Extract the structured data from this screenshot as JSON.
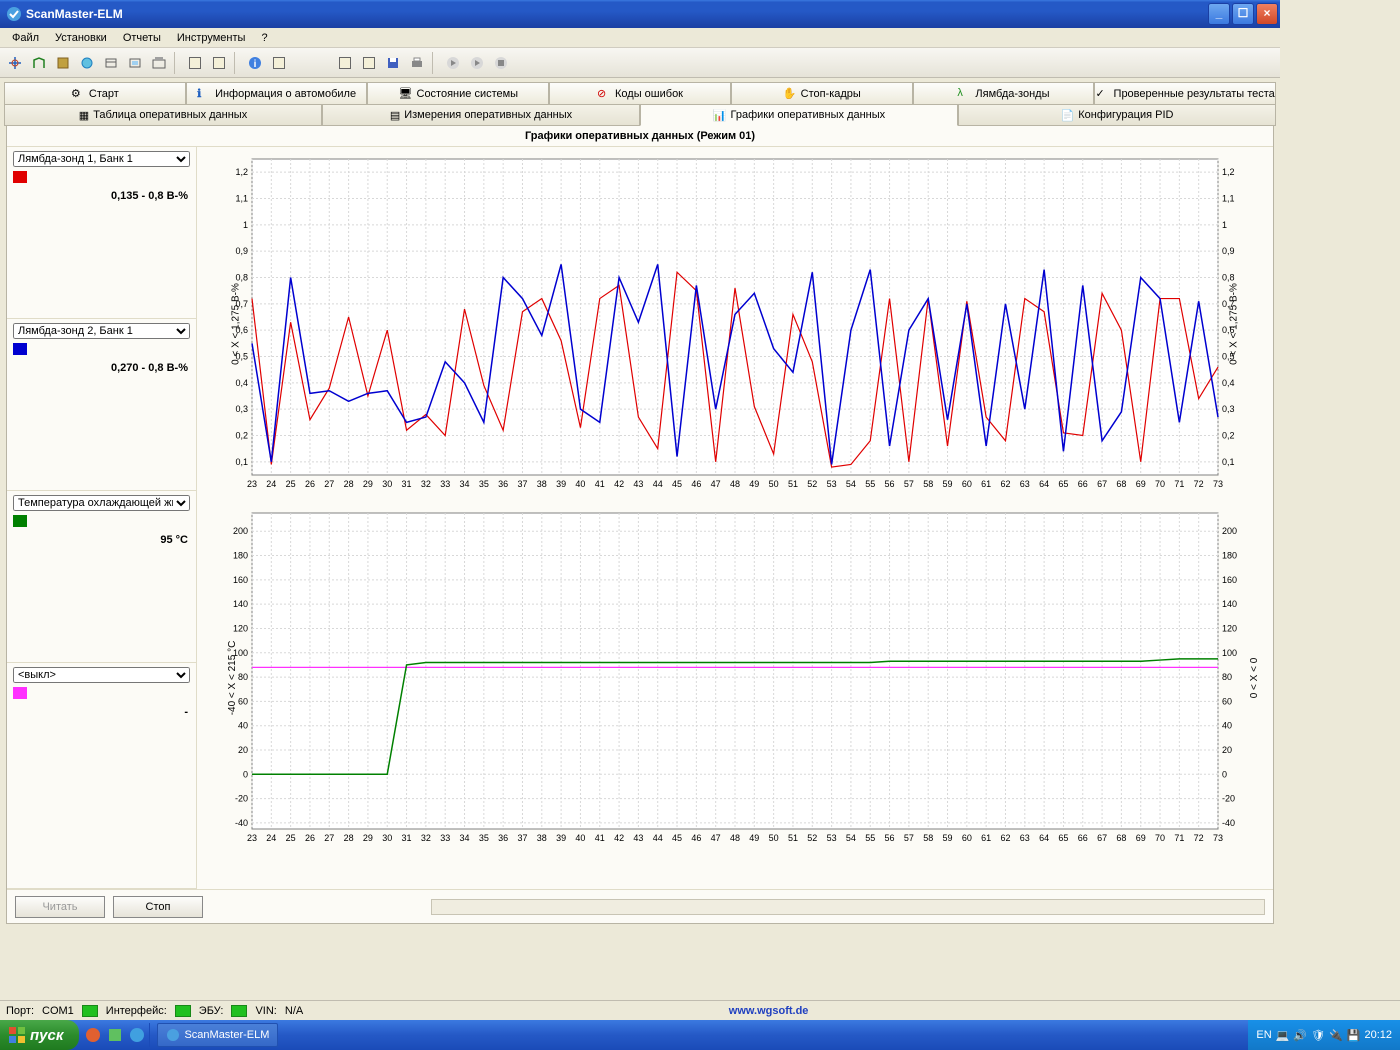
{
  "window": {
    "title": "ScanMaster-ELM"
  },
  "menu": {
    "file": "Файл",
    "settings": "Установки",
    "reports": "Отчеты",
    "tools": "Инструменты",
    "help": "?"
  },
  "tabs_top": {
    "start": "Старт",
    "vehicle": "Информация о автомобиле",
    "sysstate": "Состояние системы",
    "codes": "Коды ошибок",
    "freeze": "Стоп-кадры",
    "lambda": "Лямбда-зонды",
    "tested": "Проверенные результаты теста"
  },
  "tabs_mid": {
    "table": "Таблица оперативных данных",
    "measure": "Измерения оперативных данных",
    "graphs": "Графики оперативных данных",
    "pid": "Конфигурация PID"
  },
  "panel_title": "Графики оперативных данных (Режим 01)",
  "sensors": {
    "s1": {
      "label": "Лямбда-зонд 1, Банк 1",
      "color": "#e00000",
      "value": "0,135 - 0,8 В-%"
    },
    "s2": {
      "label": "Лямбда-зонд 2, Банк 1",
      "color": "#0000d0",
      "value": "0,270 - 0,8 В-%"
    },
    "s3": {
      "label": "Температура охлаждающей жи",
      "color": "#008000",
      "value": "95 °C"
    },
    "s4": {
      "label": "<выкл>",
      "color": "#ff30ff",
      "value": "-"
    }
  },
  "chart1": {
    "type": "line",
    "x_ticks": [
      23,
      24,
      25,
      26,
      27,
      28,
      29,
      30,
      31,
      32,
      33,
      34,
      35,
      36,
      37,
      38,
      39,
      40,
      41,
      42,
      43,
      44,
      45,
      46,
      47,
      48,
      49,
      50,
      51,
      52,
      53,
      54,
      55,
      56,
      57,
      58,
      59,
      60,
      61,
      62,
      63,
      64,
      65,
      66,
      67,
      68,
      69,
      70,
      71,
      72,
      73
    ],
    "y_ticks": [
      0.1,
      0.2,
      0.3,
      0.4,
      0.5,
      0.6,
      0.7,
      0.8,
      0.9,
      1,
      1.1,
      1.2
    ],
    "y_tick_labels": [
      "0,1",
      "0,2",
      "0,3",
      "0,4",
      "0,5",
      "0,6",
      "0,7",
      "0,8",
      "0,9",
      "1",
      "1,1",
      "1,2"
    ],
    "ylim": [
      0.05,
      1.25
    ],
    "ylabel_left": "0 < X < 1,275 В-%",
    "ylabel_right": "0 < X < 1,275 В-%",
    "background_color": "#ffffff",
    "grid_color": "#d8d8d8",
    "plot_bg": "#fcfbf6",
    "series_red": {
      "color": "#e00000",
      "width": 1.2,
      "y": [
        0.72,
        0.09,
        0.63,
        0.26,
        0.38,
        0.65,
        0.35,
        0.6,
        0.22,
        0.28,
        0.2,
        0.68,
        0.39,
        0.22,
        0.67,
        0.72,
        0.56,
        0.23,
        0.72,
        0.77,
        0.27,
        0.15,
        0.82,
        0.75,
        0.1,
        0.76,
        0.31,
        0.13,
        0.66,
        0.48,
        0.08,
        0.09,
        0.18,
        0.72,
        0.1,
        0.72,
        0.16,
        0.71,
        0.27,
        0.18,
        0.72,
        0.67,
        0.21,
        0.2,
        0.74,
        0.6,
        0.1,
        0.72,
        0.72,
        0.34,
        0.46
      ]
    },
    "series_blue": {
      "color": "#0000d0",
      "width": 1.5,
      "y": [
        0.55,
        0.1,
        0.8,
        0.36,
        0.37,
        0.33,
        0.36,
        0.37,
        0.25,
        0.27,
        0.48,
        0.4,
        0.25,
        0.8,
        0.72,
        0.58,
        0.85,
        0.3,
        0.25,
        0.8,
        0.63,
        0.85,
        0.12,
        0.77,
        0.3,
        0.66,
        0.74,
        0.53,
        0.44,
        0.82,
        0.09,
        0.6,
        0.83,
        0.16,
        0.6,
        0.72,
        0.26,
        0.7,
        0.16,
        0.7,
        0.3,
        0.83,
        0.14,
        0.77,
        0.18,
        0.29,
        0.8,
        0.72,
        0.25,
        0.71,
        0.27
      ]
    }
  },
  "chart2": {
    "type": "line",
    "x_ticks": [
      23,
      24,
      25,
      26,
      27,
      28,
      29,
      30,
      31,
      32,
      33,
      34,
      35,
      36,
      37,
      38,
      39,
      40,
      41,
      42,
      43,
      44,
      45,
      46,
      47,
      48,
      49,
      50,
      51,
      52,
      53,
      54,
      55,
      56,
      57,
      58,
      59,
      60,
      61,
      62,
      63,
      64,
      65,
      66,
      67,
      68,
      69,
      70,
      71,
      72,
      73
    ],
    "y_ticks": [
      -40,
      -20,
      0,
      20,
      40,
      60,
      80,
      100,
      120,
      140,
      160,
      180,
      200
    ],
    "ylim": [
      -45,
      215
    ],
    "ylabel_left": "-40 < X < 215 °C",
    "ylabel_right": "0 < X < 0",
    "background_color": "#ffffff",
    "grid_color": "#d8d8d8",
    "plot_bg": "#fcfbf6",
    "series_green": {
      "color": "#008000",
      "width": 1.5,
      "y": [
        0,
        0,
        0,
        0,
        0,
        0,
        0,
        0,
        90,
        92,
        92,
        92,
        92,
        92,
        92,
        92,
        92,
        92,
        92,
        92,
        92,
        92,
        92,
        92,
        92,
        92,
        92,
        92,
        92,
        92,
        92,
        92,
        92,
        93,
        93,
        93,
        93,
        93,
        93,
        93,
        93,
        93,
        93,
        93,
        93,
        93,
        93,
        94,
        95,
        95,
        95
      ]
    },
    "series_magenta": {
      "color": "#ff30ff",
      "width": 1.2,
      "y": [
        88,
        88,
        88,
        88,
        88,
        88,
        88,
        88,
        88,
        88,
        88,
        88,
        88,
        88,
        88,
        88,
        88,
        88,
        88,
        88,
        88,
        88,
        88,
        88,
        88,
        88,
        88,
        88,
        88,
        88,
        88,
        88,
        88,
        88,
        88,
        88,
        88,
        88,
        88,
        88,
        88,
        88,
        88,
        88,
        88,
        88,
        88,
        88,
        88,
        88,
        88
      ]
    }
  },
  "buttons": {
    "read": "Читать",
    "stop": "Стоп"
  },
  "status": {
    "port_lbl": "Порт:",
    "port_val": "COM1",
    "iface_lbl": "Интерфейс:",
    "ecu_lbl": "ЭБУ:",
    "vin_lbl": "VIN:",
    "vin_val": "N/A",
    "url": "www.wgsoft.de"
  },
  "taskbar": {
    "start": "пуск",
    "app": "ScanMaster-ELM",
    "lang": "EN",
    "clock": "20:12"
  }
}
